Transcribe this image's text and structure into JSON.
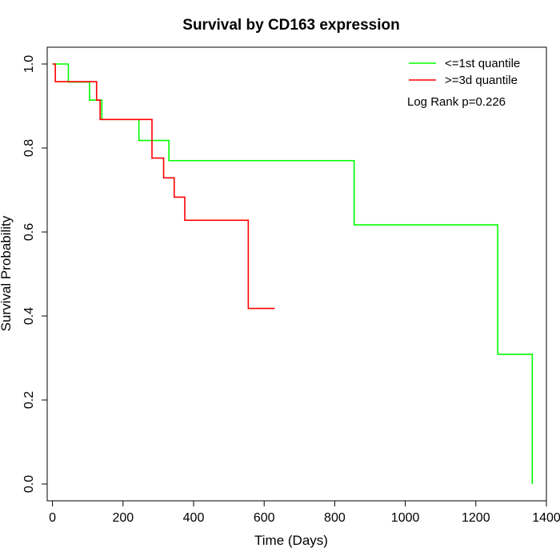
{
  "chart_data": {
    "type": "line",
    "title": "Survival by CD163 expression",
    "xlabel": "Time (Days)",
    "ylabel": "Survival Probability",
    "xlim": [
      -15,
      1400
    ],
    "ylim": [
      -0.04,
      1.04
    ],
    "xticks": [
      0,
      200,
      400,
      600,
      800,
      1000,
      1200,
      1400
    ],
    "yticks": [
      0.0,
      0.2,
      0.4,
      0.6,
      0.8,
      1.0
    ],
    "ytick_labels": [
      "0.0",
      "0.2",
      "0.4",
      "0.6",
      "0.8",
      "1.0"
    ],
    "grid": false,
    "legend_position": "top-right",
    "series": [
      {
        "name": "<=1st quantile",
        "color": "#00ff00",
        "step": true,
        "x": [
          0,
          45,
          105,
          140,
          245,
          330,
          855,
          1262,
          1360
        ],
        "y": [
          1.0,
          0.957,
          0.914,
          0.868,
          0.818,
          0.77,
          0.617,
          0.309,
          0.0
        ]
      },
      {
        "name": ">=3d quantile",
        "color": "#ff0000",
        "step": true,
        "x": [
          0,
          8,
          110,
          125,
          135,
          275,
          282,
          315,
          345,
          375,
          555,
          630
        ],
        "y": [
          1.0,
          0.958,
          0.958,
          0.914,
          0.868,
          0.868,
          0.776,
          0.729,
          0.683,
          0.628,
          0.418,
          0.418
        ]
      }
    ],
    "annotation": "Log Rank p=0.226"
  }
}
